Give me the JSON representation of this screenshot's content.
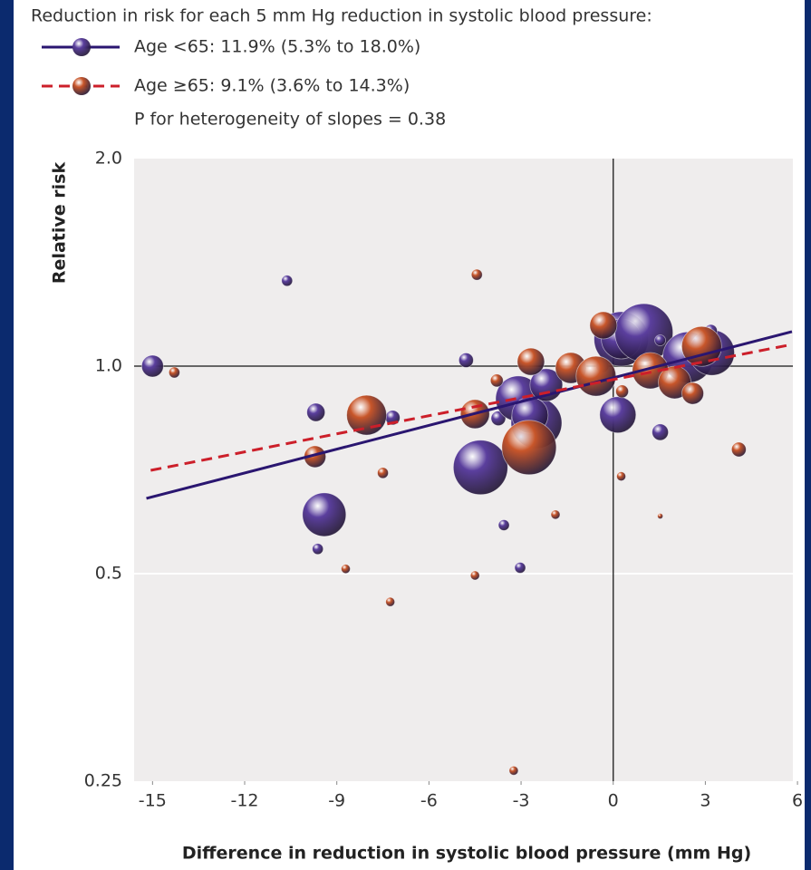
{
  "chart_data": {
    "type": "scatter",
    "y_scale": "log",
    "legend_title": "Reduction in risk for each 5 mm Hg reduction in systolic blood pressure:",
    "note": "P for heterogeneity of slopes = 0.38",
    "x_label": "Difference in reduction in systolic blood pressure (mm Hg)",
    "y_label": "Relative risk",
    "xlim": [
      -15.6,
      5.85
    ],
    "ylim": [
      0.25,
      2.0
    ],
    "xticks": [
      -15,
      -12,
      -9,
      -6,
      -3,
      0,
      3,
      6
    ],
    "yticks": [
      {
        "value": 2.0,
        "label": "2.0"
      },
      {
        "value": 1.0,
        "label": "1.0"
      },
      0.5,
      0.25
    ],
    "reference_lines": {
      "x": 0,
      "y": 1
    },
    "grid": true,
    "series": [
      {
        "name": "Age <65: 11.9% (5.3% to 18.0%)",
        "color": "#5b3f9e",
        "line_color": "#2a1670",
        "line_style": "solid",
        "x": [
          -15.0,
          -10.62,
          -4.79,
          -9.68,
          -7.18,
          -9.41,
          -9.62,
          -4.32,
          -3.74,
          -3.09,
          -2.5,
          -2.71,
          -2.18,
          -3.56,
          -3.03,
          -0.35,
          0.15,
          0.26,
          0.26,
          1.0,
          1.53,
          1.53,
          2.44,
          3.21,
          3.18
        ],
        "values": [
          1.0,
          1.33,
          1.02,
          0.857,
          0.842,
          0.609,
          0.543,
          0.713,
          0.84,
          0.897,
          0.827,
          0.849,
          0.939,
          0.588,
          0.51,
          1.0,
          0.85,
          1.095,
          1.095,
          1.118,
          1.09,
          0.802,
          1.03,
          1.046,
          1.125
        ],
        "sizes": [
          12,
          6,
          8,
          10,
          8,
          24,
          6,
          30,
          8,
          25,
          28,
          20,
          18,
          6,
          6,
          7,
          20,
          30,
          22,
          32,
          6,
          9,
          28,
          25,
          7
        ],
        "fit": {
          "x": [
            -15.2,
            5.82
          ],
          "values": [
            0.643,
            1.122
          ]
        }
      },
      {
        "name": "Age ≥65: 9.1% (3.6% to 14.3%)",
        "color": "#c8562a",
        "line_color": "#cc1f2a",
        "line_style": "dashed",
        "x": [
          -14.29,
          -4.44,
          -9.71,
          -8.03,
          -7.5,
          -8.71,
          -7.26,
          -4.5,
          -4.5,
          -3.79,
          -2.68,
          -2.74,
          -1.88,
          -3.24,
          -1.38,
          -0.56,
          -0.32,
          0.29,
          0.26,
          1.21,
          2.0,
          2.59,
          2.88,
          1.53,
          4.09
        ],
        "values": [
          0.979,
          1.357,
          0.739,
          0.849,
          0.7,
          0.508,
          0.455,
          0.852,
          0.497,
          0.953,
          1.015,
          0.762,
          0.609,
          0.259,
          0.994,
          0.967,
          1.146,
          0.919,
          0.692,
          0.985,
          0.947,
          0.913,
          1.068,
          0.606,
          0.757
        ],
        "sizes": [
          6,
          6,
          12,
          22,
          6,
          5,
          5,
          16,
          5,
          7,
          15,
          30,
          5,
          5,
          17,
          22,
          15,
          7,
          5,
          20,
          18,
          12,
          22,
          3,
          8
        ],
        "fit": {
          "x": [
            -15.06,
            5.82
          ],
          "values": [
            0.706,
            1.075
          ]
        }
      }
    ]
  }
}
